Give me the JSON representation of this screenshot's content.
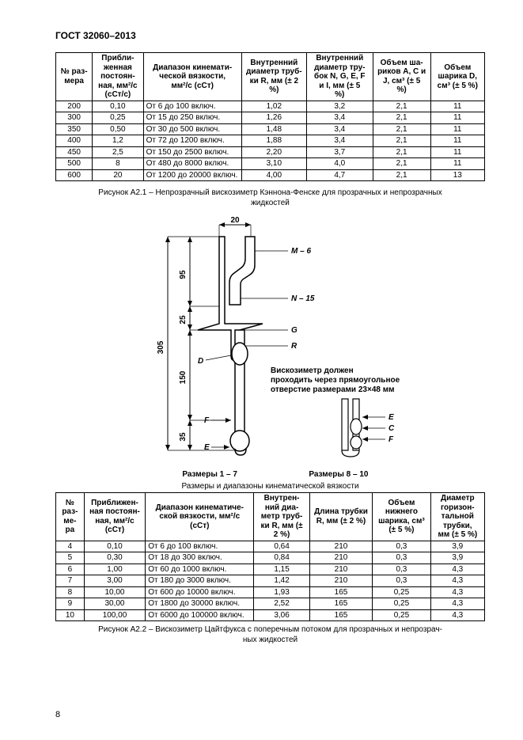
{
  "doc_header": "ГОСТ 32060–2013",
  "page_number": "8",
  "table1": {
    "headers": [
      "№ раз-\nмера",
      "Прибли-\nженная\nпостоян-\nная, мм²/с\n(сСт/с)",
      "Диапазон кинемати-\nческой вязкости,\nмм²/с (сСт)",
      "Внутренний\nдиаметр труб-\nки R, мм (± 2\n%)",
      "Внутренний\nдиаметр тру-\nбок N, G, E, F\nи I, мм (± 5\n%)",
      "Объем ша-\nриков A, C и\nJ, см³ (± 5\n%)",
      "Объем\nшарика D,\nсм³ (± 5 %)"
    ],
    "rows": [
      [
        "200",
        "0,10",
        "От 6 до 100 включ.",
        "1,02",
        "3,2",
        "2,1",
        "11"
      ],
      [
        "300",
        "0,25",
        "От 15 до 250 включ.",
        "1,26",
        "3,4",
        "2,1",
        "11"
      ],
      [
        "350",
        "0,50",
        "От 30 до 500 включ.",
        "1,48",
        "3,4",
        "2,1",
        "11"
      ],
      [
        "400",
        "1,2",
        "От 72 до 1200 включ.",
        "1,88",
        "3,4",
        "2,1",
        "11"
      ],
      [
        "450",
        "2,5",
        "От 150 до 2500 включ.",
        "2,20",
        "3,7",
        "2,1",
        "11"
      ],
      [
        "500",
        "8",
        "От 480 до 8000 включ.",
        "3,10",
        "4,0",
        "2,1",
        "11"
      ],
      [
        "600",
        "20",
        "От 1200 до 20000 включ.",
        "4,00",
        "4,7",
        "2,1",
        "13"
      ]
    ]
  },
  "caption1": "Рисунок А2.1 – Непрозрачный вискозиметр Кэннона-Фенске для прозрачных и непрозрачных\nжидкостей",
  "diagram": {
    "dim_top": "20",
    "dim_95": "95",
    "dim_25": "25",
    "dim_305": "305",
    "dim_150": "150",
    "dim_35": "35",
    "label_M": "M – 6",
    "label_N": "N – 15",
    "label_G": "G",
    "label_D": "D",
    "label_R": "R",
    "label_F_left": "F",
    "label_E_left": "E",
    "label_E_right": "E",
    "label_C_right": "C",
    "label_F_right": "F",
    "note_l1": "Вискозиметр должен",
    "note_l2": "проходить через прямоугольное",
    "note_l3": "отверстие размерами 23×48 мм",
    "sizes_left": "Размеры 1 – 7",
    "sizes_right": "Размеры 8 – 10"
  },
  "subcaption2": "Размеры и диапазоны кинематической вязкости",
  "table2": {
    "headers": [
      "№\nраз-\nме-\nра",
      "Приближен-\nная постоян-\nная, мм²/с\n(сСт)",
      "Диапазон кинематиче-\nской вязкости, мм²/с\n(сСт)",
      "Внутрен-\nний диа-\nметр труб-\nки R, мм (±\n2 %)",
      "Длина трубки\nR, мм (± 2 %)",
      "Объем\nнижнего\nшарика, см³\n(± 5 %)",
      "Диаметр\nгоризон-\nтальной\nтрубки,\nмм (± 5 %)"
    ],
    "rows": [
      [
        "4",
        "0,10",
        "От 6 до 100 включ.",
        "0,64",
        "210",
        "0,3",
        "3,9"
      ],
      [
        "5",
        "0,30",
        "От 18 до 300 включ.",
        "0,84",
        "210",
        "0,3",
        "3,9"
      ],
      [
        "6",
        "1,00",
        "От 60 до 1000 включ.",
        "1,15",
        "210",
        "0,3",
        "4,3"
      ],
      [
        "7",
        "3,00",
        "От 180 до 3000 включ.",
        "1,42",
        "210",
        "0,3",
        "4,3"
      ],
      [
        "8",
        "10,00",
        "От 600 до 10000 включ.",
        "1,93",
        "165",
        "0,25",
        "4,3"
      ],
      [
        "9",
        "30,00",
        "От 1800 до 30000 включ.",
        "2,52",
        "165",
        "0,25",
        "4,3"
      ],
      [
        "10",
        "100,00",
        "От 6000 до 100000 включ.",
        "3,06",
        "165",
        "0,25",
        "4,3"
      ]
    ]
  },
  "caption2": "Рисунок А2.2 – Вискозиметр Цайтфукса с поперечным потоком для прозрачных и непрозрач-\nных жидкостей"
}
